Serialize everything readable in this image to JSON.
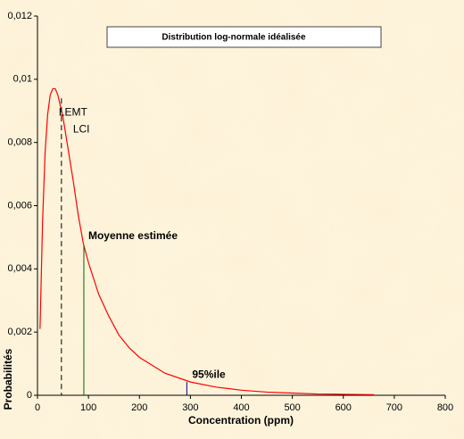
{
  "chart_data": {
    "type": "line",
    "title": "Distribution log-normale idéalisée",
    "xlabel": "Concentration (ppm)",
    "ylabel": "Probabilités",
    "x": [
      5,
      10,
      15,
      20,
      25,
      30,
      35,
      40,
      50,
      60,
      70,
      80,
      90,
      100,
      120,
      140,
      160,
      180,
      200,
      250,
      300,
      350,
      400,
      450,
      500,
      550,
      600,
      660
    ],
    "series": [
      {
        "name": "Distribution",
        "color": "#ff0000",
        "values": [
          0.0021,
          0.0055,
          0.0077,
          0.0089,
          0.0095,
          0.0097,
          0.0097,
          0.0095,
          0.0088,
          0.0078,
          0.0068,
          0.0057,
          0.0048,
          0.0042,
          0.0032,
          0.0025,
          0.0019,
          0.0015,
          0.0012,
          0.0007,
          0.00042,
          0.00026,
          0.00016,
          0.0001,
          7e-05,
          4e-05,
          3e-05,
          2e-05
        ]
      }
    ],
    "xlim": [
      0,
      800
    ],
    "xticks": [
      0,
      100,
      200,
      300,
      400,
      500,
      600,
      700,
      800
    ],
    "ylim": [
      0,
      0.012
    ],
    "yticks": [
      0,
      {
        "value": 0.002,
        "label": "0,002"
      },
      {
        "value": 0.004,
        "label": "0,004"
      },
      {
        "value": 0.006,
        "label": "0,006"
      },
      {
        "value": 0.008,
        "label": "0,008"
      },
      {
        "value": 0.01,
        "label": "0,01"
      },
      {
        "value": 0.012,
        "label": "0,012"
      }
    ],
    "markers": [
      {
        "x": 47,
        "y": 0.0094,
        "color": "#000000",
        "dashed": true,
        "labels": [
          {
            "text": "LEMT",
            "color": "#000000"
          },
          {
            "text": "LCI",
            "color": "#339933"
          }
        ]
      },
      {
        "x": 91,
        "y": 0.00475,
        "color": "#006600",
        "dashed": false,
        "labels": [
          {
            "text": "Moyenne estimée",
            "color": "#339933"
          }
        ]
      },
      {
        "x": 293,
        "y": 0.00042,
        "color": "#000080",
        "dashed": false,
        "labels": [
          {
            "text": "95%ile",
            "color": "#0000cc"
          }
        ]
      }
    ]
  }
}
